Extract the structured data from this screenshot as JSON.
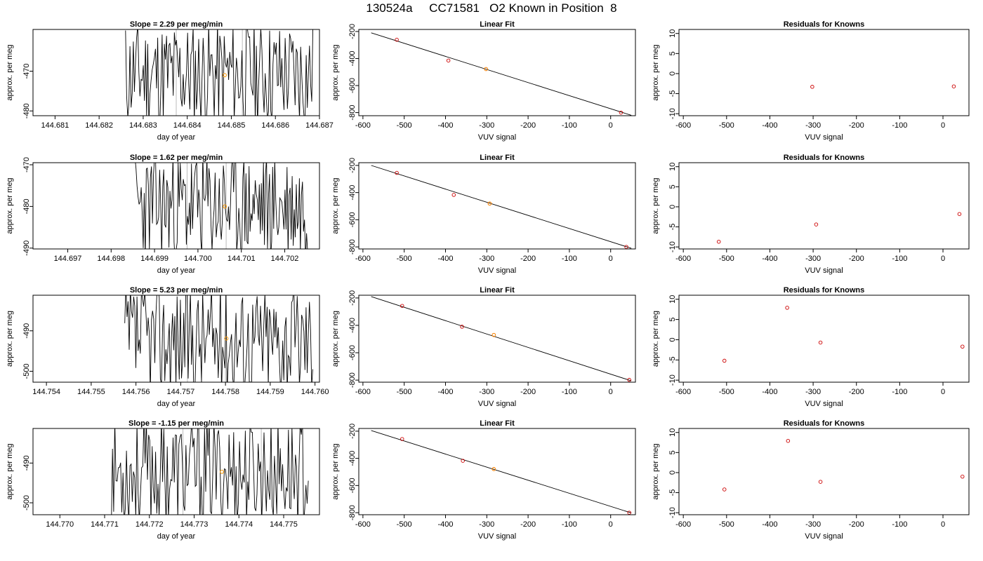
{
  "figure_title": "130524a     CC71581   O2 Known in Position  8",
  "chart_data": [
    {
      "type": "line",
      "title": "Slope =  2.29  per meg/min",
      "xlabel": "day of year",
      "ylabel": "approx. per meg",
      "xlim": [
        144.6805,
        144.687
      ],
      "ylim": [
        -481.2,
        -459.5
      ],
      "xticks": [
        "144.681",
        "144.682",
        "144.683",
        "144.684",
        "144.685",
        "144.686",
        "144.687"
      ],
      "yticks": [
        "-470",
        "-480"
      ],
      "marker": {
        "x": 144.68485,
        "y": -471.0
      },
      "gray_line_x": [
        144.68375,
        144.68525
      ],
      "series": [
        {
          "x_start": 144.6826,
          "x_end": 144.68685,
          "seed": 11,
          "center": -470.8,
          "amp": 10.5
        }
      ]
    },
    {
      "type": "line",
      "title": "Linear Fit",
      "xlabel": "VUV signal",
      "ylabel": "approx. per meg",
      "xlim": [
        -610,
        60
      ],
      "ylim": [
        -823,
        -185
      ],
      "xticks": [
        "-600",
        "-500",
        "-400",
        "-300",
        "-200",
        "-100",
        "0"
      ],
      "yticks": [
        "-200",
        "-400",
        "-600",
        "-800"
      ],
      "fit_line": {
        "x": [
          -580,
          50
        ],
        "y": [
          -210,
          -820
        ]
      },
      "points": [
        {
          "x": -518,
          "y": -261
        },
        {
          "x": -393,
          "y": -415
        },
        {
          "x": -302,
          "y": -478
        },
        {
          "x": 25,
          "y": -800
        }
      ],
      "highlight": {
        "x": -302,
        "y": -478
      }
    },
    {
      "type": "scatter",
      "title": "Residuals for Knowns",
      "xlabel": "VUV signal",
      "ylabel": "approx. per meg",
      "xlim": [
        -610,
        60
      ],
      "ylim": [
        -10.5,
        11
      ],
      "xticks": [
        "-600",
        "-500",
        "-400",
        "-300",
        "-200",
        "-100",
        "0"
      ],
      "yticks": [
        "10",
        "5",
        "0",
        "-5",
        "-10"
      ],
      "points": [
        {
          "x": -302,
          "y": -3.3
        },
        {
          "x": 25,
          "y": -3.2
        }
      ]
    },
    {
      "type": "line",
      "title": "Slope =  1.62  per meg/min",
      "xlabel": "day of year",
      "ylabel": "approx. per meg",
      "xlim": [
        144.6962,
        144.7028
      ],
      "ylim": [
        -490.2,
        -469.5
      ],
      "xticks": [
        "144.697",
        "144.698",
        "144.699",
        "144.700",
        "144.701",
        "144.702"
      ],
      "yticks": [
        "-470",
        "-480",
        "-490"
      ],
      "marker": {
        "x": 144.70062,
        "y": -480.0
      },
      "gray_line_x": [
        144.69975,
        144.70065
      ],
      "series": [
        {
          "x_start": 144.69855,
          "x_end": 144.70255,
          "seed": 23,
          "center": -480.0,
          "amp": 10.2
        }
      ]
    },
    {
      "type": "line",
      "title": "Linear Fit",
      "xlabel": "VUV signal",
      "ylabel": "approx. per meg",
      "xlim": [
        -610,
        60
      ],
      "ylim": [
        -815,
        -180
      ],
      "xticks": [
        "-600",
        "-500",
        "-400",
        "-300",
        "-200",
        "-100",
        "0"
      ],
      "yticks": [
        "-200",
        "-400",
        "-600",
        "-800"
      ],
      "fit_line": {
        "x": [
          -580,
          50
        ],
        "y": [
          -200,
          -810
        ]
      },
      "points": [
        {
          "x": -518,
          "y": -255
        },
        {
          "x": -380,
          "y": -417
        },
        {
          "x": -293,
          "y": -481
        },
        {
          "x": 38,
          "y": -800
        }
      ],
      "highlight": {
        "x": -293,
        "y": -481
      }
    },
    {
      "type": "scatter",
      "title": "Residuals for Knowns",
      "xlabel": "VUV signal",
      "ylabel": "approx. per meg",
      "xlim": [
        -610,
        60
      ],
      "ylim": [
        -10.5,
        11
      ],
      "xticks": [
        "-600",
        "-500",
        "-400",
        "-300",
        "-200",
        "-100",
        "0"
      ],
      "yticks": [
        "10",
        "5",
        "0",
        "-5",
        "-10"
      ],
      "points": [
        {
          "x": -518,
          "y": -8.7
        },
        {
          "x": -293,
          "y": -4.4
        },
        {
          "x": 38,
          "y": -1.8
        }
      ]
    },
    {
      "type": "line",
      "title": "Slope =  5.23  per meg/min",
      "xlabel": "day of year",
      "ylabel": "approx. per meg",
      "xlim": [
        144.7537,
        144.7601
      ],
      "ylim": [
        -502.7,
        -481.2
      ],
      "xticks": [
        "144.754",
        "144.755",
        "144.756",
        "144.757",
        "144.758",
        "144.759",
        "144.760"
      ],
      "yticks": [
        "-490",
        "-500"
      ],
      "marker": {
        "x": 144.75802,
        "y": -491.9
      },
      "gray_line_x": [
        144.75715,
        144.758
      ],
      "series": [
        {
          "x_start": 144.75575,
          "x_end": 144.75995,
          "seed": 37,
          "center": -492.0,
          "amp": 10.8
        }
      ]
    },
    {
      "type": "line",
      "title": "Linear Fit",
      "xlabel": "VUV signal",
      "ylabel": "approx. per meg",
      "xlim": [
        -610,
        60
      ],
      "ylim": [
        -815,
        -180
      ],
      "xticks": [
        "-600",
        "-500",
        "-400",
        "-300",
        "-200",
        "-100",
        "0"
      ],
      "yticks": [
        "-200",
        "-400",
        "-600",
        "-800"
      ],
      "fit_line": {
        "x": [
          -580,
          50
        ],
        "y": [
          -190,
          -805
        ]
      },
      "points": [
        {
          "x": -505,
          "y": -258
        },
        {
          "x": -360,
          "y": -410
        },
        {
          "x": -283,
          "y": -470
        },
        {
          "x": 45,
          "y": -798
        }
      ],
      "highlight": {
        "x": -283,
        "y": -470
      }
    },
    {
      "type": "scatter",
      "title": "Residuals for Knowns",
      "xlabel": "VUV signal",
      "ylabel": "approx. per meg",
      "xlim": [
        -610,
        60
      ],
      "ylim": [
        -10.5,
        11
      ],
      "xticks": [
        "-600",
        "-500",
        "-400",
        "-300",
        "-200",
        "-100",
        "0"
      ],
      "yticks": [
        "10",
        "5",
        "0",
        "-5",
        "-10"
      ],
      "points": [
        {
          "x": -505,
          "y": -5.2
        },
        {
          "x": -360,
          "y": 7.9
        },
        {
          "x": -283,
          "y": -0.7
        },
        {
          "x": 45,
          "y": -1.7
        }
      ]
    },
    {
      "type": "line",
      "title": "Slope =  -1.15  per meg/min",
      "xlabel": "day of year",
      "ylabel": "approx. per meg",
      "xlim": [
        144.7694,
        144.7758
      ],
      "ylim": [
        -503,
        -481.3
      ],
      "xticks": [
        "144.770",
        "144.771",
        "144.772",
        "144.773",
        "144.774",
        "144.775"
      ],
      "yticks": [
        "-490",
        "-500"
      ],
      "marker": {
        "x": 144.77362,
        "y": -492.2
      },
      "gray_line_x": [
        144.77275,
        144.7745
      ],
      "series": [
        {
          "x_start": 144.77115,
          "x_end": 144.77555,
          "seed": 53,
          "center": -492.2,
          "amp": 10.6
        }
      ]
    },
    {
      "type": "line",
      "title": "Linear Fit",
      "xlabel": "VUV signal",
      "ylabel": "approx. per meg",
      "xlim": [
        -610,
        60
      ],
      "ylim": [
        -815,
        -180
      ],
      "xticks": [
        "-600",
        "-500",
        "-400",
        "-300",
        "-200",
        "-100",
        "0"
      ],
      "yticks": [
        "-200",
        "-400",
        "-600",
        "-800"
      ],
      "fit_line": {
        "x": [
          -580,
          50
        ],
        "y": [
          -195,
          -802
        ]
      },
      "points": [
        {
          "x": -505,
          "y": -258
        },
        {
          "x": -358,
          "y": -418
        },
        {
          "x": -283,
          "y": -479
        },
        {
          "x": 45,
          "y": -800
        }
      ],
      "highlight": {
        "x": -283,
        "y": -479
      }
    },
    {
      "type": "scatter",
      "title": "Residuals for Knowns",
      "xlabel": "VUV signal",
      "ylabel": "approx. per meg",
      "xlim": [
        -610,
        60
      ],
      "ylim": [
        -10.5,
        11
      ],
      "xticks": [
        "-600",
        "-500",
        "-400",
        "-300",
        "-200",
        "-100",
        "0"
      ],
      "yticks": [
        "10",
        "5",
        "0",
        "-5",
        "-10"
      ],
      "points": [
        {
          "x": -505,
          "y": -4.2
        },
        {
          "x": -358,
          "y": 7.9
        },
        {
          "x": -283,
          "y": -2.3
        },
        {
          "x": 45,
          "y": -1.0
        }
      ]
    }
  ],
  "colors": {
    "axis": "#000000",
    "line": "#000000",
    "point": "#cc0000",
    "highlight": "#ff9900",
    "gray": "#bbbbbb"
  }
}
